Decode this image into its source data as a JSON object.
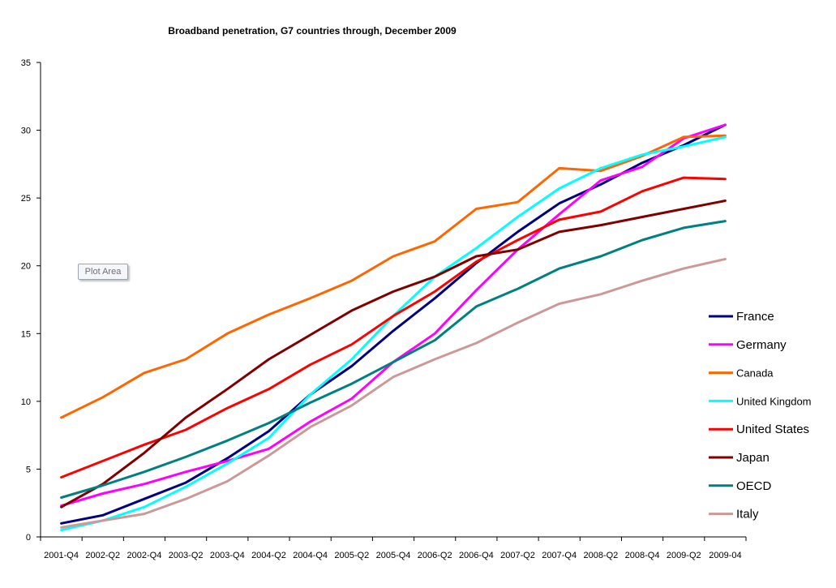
{
  "chart_data": {
    "type": "line",
    "title": "Broadband penetration,  G7 countries through,  December 2009",
    "xlabel": "",
    "ylabel": "",
    "ylim": [
      0,
      35
    ],
    "yticks": [
      "0",
      "5",
      "10",
      "15",
      "20",
      "25",
      "30",
      "35"
    ],
    "categories": [
      "2001-Q4",
      "2002-Q2",
      "2002-Q4",
      "2003-Q2",
      "2003-Q4",
      "2004-Q2",
      "2004-Q4",
      "2005-Q2",
      "2005-Q4",
      "2006-Q2",
      "2006-Q4",
      "2007-Q2",
      "2007-Q4",
      "2008-Q2",
      "2008-Q4",
      "2009-Q2",
      "2009-04"
    ],
    "legend_position": "right",
    "tooltip": "Plot Area",
    "series": [
      {
        "name": "France",
        "color": "#000080",
        "values": [
          1.0,
          1.6,
          2.8,
          4.0,
          5.8,
          7.8,
          10.5,
          12.6,
          15.2,
          17.6,
          20.2,
          22.5,
          24.6,
          26.0,
          27.6,
          28.9,
          30.4
        ]
      },
      {
        "name": "Germany",
        "color": "#ff00ff",
        "values": [
          2.3,
          3.2,
          3.9,
          4.8,
          5.6,
          6.5,
          8.5,
          10.2,
          12.9,
          15.0,
          18.2,
          21.2,
          23.8,
          26.3,
          27.3,
          29.4,
          30.4
        ]
      },
      {
        "name": "Canada",
        "color": "#ff6600",
        "values": [
          8.8,
          10.3,
          12.1,
          13.1,
          15.0,
          16.4,
          17.6,
          18.9,
          20.7,
          21.8,
          24.2,
          24.7,
          27.2,
          27.0,
          28.1,
          29.5,
          29.6
        ]
      },
      {
        "name": "United Kingdom",
        "color": "#00ffff",
        "values": [
          0.5,
          1.2,
          2.2,
          3.7,
          5.4,
          7.3,
          10.5,
          13.1,
          16.3,
          19.2,
          21.3,
          23.6,
          25.7,
          27.2,
          28.2,
          28.8,
          29.5
        ]
      },
      {
        "name": "United States",
        "color": "#ff0000",
        "values": [
          4.4,
          5.6,
          6.8,
          7.9,
          9.5,
          10.9,
          12.7,
          14.2,
          16.3,
          18.1,
          20.3,
          21.9,
          23.4,
          24.0,
          25.5,
          26.5,
          26.4
        ]
      },
      {
        "name": "Japan",
        "color": "#800000",
        "values": [
          2.2,
          3.9,
          6.2,
          8.8,
          10.9,
          13.1,
          14.9,
          16.7,
          18.1,
          19.2,
          20.7,
          21.2,
          22.5,
          23.0,
          23.6,
          24.2,
          24.8
        ]
      },
      {
        "name": "OECD",
        "color": "#008080",
        "values": [
          2.9,
          3.8,
          4.8,
          5.9,
          7.1,
          8.4,
          9.9,
          11.3,
          12.9,
          14.5,
          17.0,
          18.3,
          19.8,
          20.7,
          21.9,
          22.8,
          23.3
        ]
      },
      {
        "name": "Italy",
        "color": "#cc9999",
        "values": [
          0.7,
          1.2,
          1.7,
          2.8,
          4.1,
          6.0,
          8.1,
          9.7,
          11.8,
          13.1,
          14.3,
          15.8,
          17.2,
          17.9,
          18.9,
          19.8,
          20.5
        ]
      }
    ],
    "legend_font_sizes_hint": "mixed"
  }
}
